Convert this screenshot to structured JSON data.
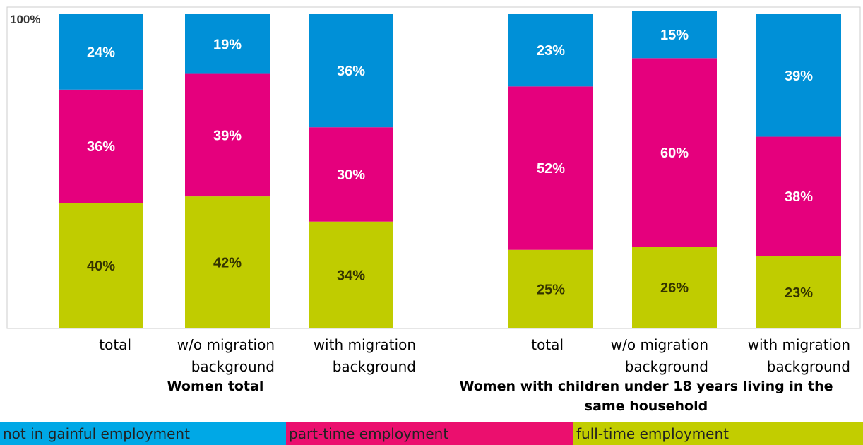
{
  "chart_data": {
    "type": "bar",
    "stacked": true,
    "percent": true,
    "title": "",
    "xlabel": "",
    "ylabel": "",
    "ylim": [
      0,
      100
    ],
    "yticks": [
      "100%"
    ],
    "grid": false,
    "legend_position": "bottom",
    "groups": [
      {
        "label": "Women total",
        "categories": [
          "total",
          "w/o migration background",
          "with migration background"
        ],
        "category_lines": [
          [
            "total"
          ],
          [
            "w/o migration",
            "background"
          ],
          [
            "with migration",
            "background"
          ]
        ]
      },
      {
        "label": "Women with children under 18 years living in the same household",
        "label_lines": [
          "Women with children under 18 years living in the",
          "same household"
        ],
        "categories": [
          "total",
          "w/o migration background",
          "with migration background"
        ],
        "category_lines": [
          [
            "total"
          ],
          [
            "w/o migration",
            "background"
          ],
          [
            "with migration",
            "background"
          ]
        ]
      }
    ],
    "series": [
      {
        "name": "full-time employment",
        "color": "#c0cc00",
        "labels": [
          "40%",
          "42%",
          "34%",
          "25%",
          "26%",
          "23%"
        ],
        "values": [
          40,
          42,
          34,
          25,
          26,
          23
        ]
      },
      {
        "name": "part-time employment",
        "color": "#e5007d",
        "labels": [
          "36%",
          "39%",
          "30%",
          "52%",
          "60%",
          "38%"
        ],
        "values": [
          36,
          39,
          30,
          52,
          60,
          38
        ]
      },
      {
        "name": "not in gainful employment",
        "color": "#0090d7",
        "labels": [
          "24%",
          "19%",
          "36%",
          "23%",
          "15%",
          "39%"
        ],
        "values": [
          24,
          19,
          36,
          23,
          15,
          39
        ]
      }
    ],
    "legend": [
      {
        "name": "not in gainful employment",
        "color": "#00a8e6"
      },
      {
        "name": "part-time employment",
        "color": "#eb0f6e"
      },
      {
        "name": "full-time employment",
        "color": "#c2cd00"
      }
    ]
  }
}
